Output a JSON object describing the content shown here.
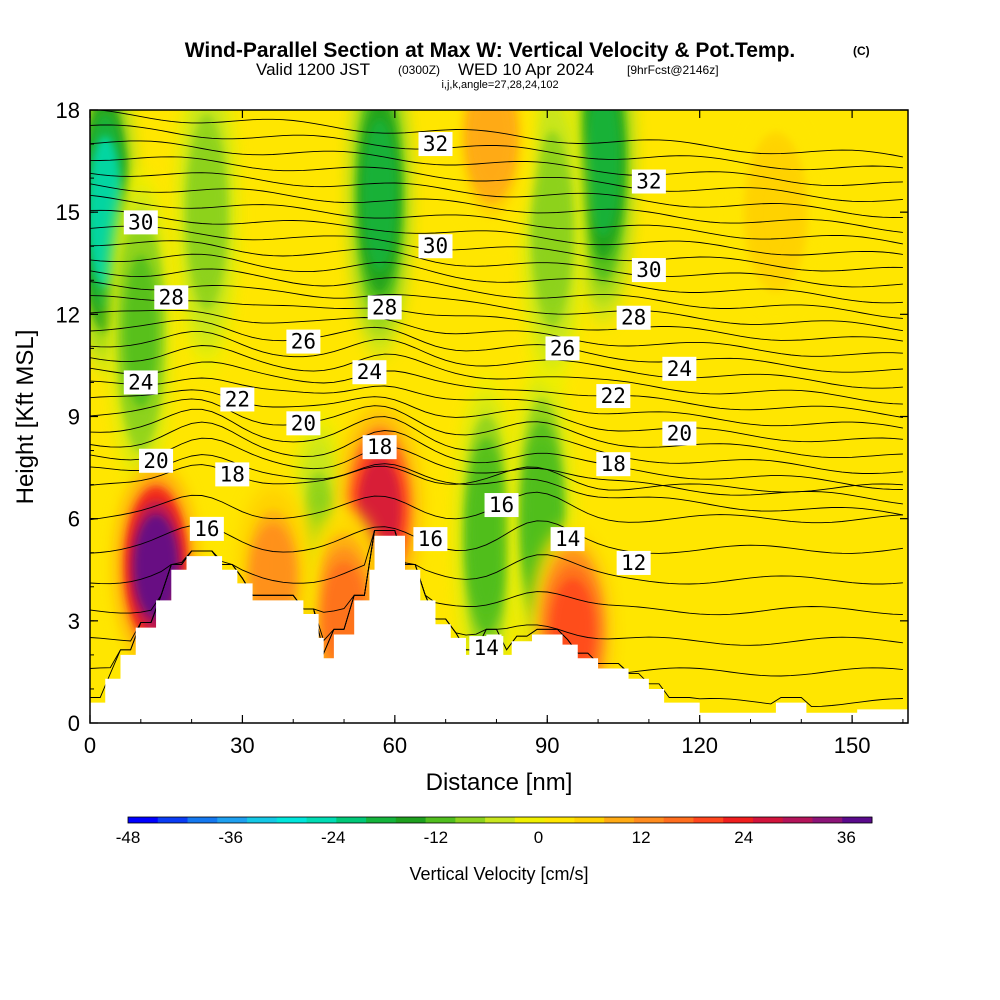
{
  "titles": {
    "main": "Wind-Parallel Section at Max W: Vertical Velocity & Pot.Temp.",
    "copyright": "(C)",
    "valid_prefix": "Valid 1200 JST",
    "valid_utc": "(0300Z)",
    "valid_date": "WED 10 Apr 2024",
    "forecast": "[9hrFcst@2146z]",
    "indices": "i,j,k,angle=27,28,24,102"
  },
  "colorbar": {
    "label": "Vertical Velocity [cm/s]",
    "tick_labels": [
      "-48",
      "-36",
      "-24",
      "-12",
      "0",
      "12",
      "24",
      "36"
    ],
    "tick_values": [
      -48,
      -36,
      -24,
      -12,
      0,
      12,
      24,
      36
    ],
    "min": -48,
    "max": 39,
    "colors": [
      "#0000ff",
      "#0a3cf5",
      "#1478f0",
      "#1ea0f0",
      "#14c8e6",
      "#00e6dc",
      "#00dcb4",
      "#00c878",
      "#14b43c",
      "#1ea01e",
      "#50be1e",
      "#8cd21e",
      "#c8e61e",
      "#f0f000",
      "#ffe600",
      "#ffd200",
      "#ffaa14",
      "#ff8c1e",
      "#ff6e1e",
      "#ff461e",
      "#f01e1e",
      "#d2143c",
      "#b4145a",
      "#8c1478",
      "#5a0a8c"
    ]
  },
  "chart_data": {
    "type": "heatmap",
    "title": "Wind-Parallel Section at Max W: Vertical Velocity & Pot.Temp.",
    "xlabel": "Distance [nm]",
    "ylabel": "Height [Kft MSL]",
    "xlim": [
      0,
      161
    ],
    "ylim": [
      0,
      18
    ],
    "x_ticks": [
      0,
      30,
      60,
      90,
      120,
      150
    ],
    "y_ticks": [
      0,
      3,
      6,
      9,
      12,
      15,
      18
    ],
    "fill_variable": "Vertical Velocity [cm/s]",
    "contour_variable": "Pot.Temp.",
    "terrain": [
      [
        0,
        0.6
      ],
      [
        3,
        0.6
      ],
      [
        3,
        1.3
      ],
      [
        6,
        1.3
      ],
      [
        6,
        2.0
      ],
      [
        9,
        2.0
      ],
      [
        9,
        2.8
      ],
      [
        13,
        2.8
      ],
      [
        13,
        3.6
      ],
      [
        16,
        3.6
      ],
      [
        16,
        4.5
      ],
      [
        19,
        4.5
      ],
      [
        19,
        4.9
      ],
      [
        26,
        4.9
      ],
      [
        26,
        4.5
      ],
      [
        29,
        4.5
      ],
      [
        29,
        4.1
      ],
      [
        32,
        4.1
      ],
      [
        32,
        3.6
      ],
      [
        39,
        3.6
      ],
      [
        39,
        3.6
      ],
      [
        42,
        3.6
      ],
      [
        42,
        3.2
      ],
      [
        45,
        3.2
      ],
      [
        45,
        2.5
      ],
      [
        46,
        2.5
      ],
      [
        46,
        1.9
      ],
      [
        48,
        1.9
      ],
      [
        48,
        2.6
      ],
      [
        52,
        2.6
      ],
      [
        52,
        3.6
      ],
      [
        55,
        3.6
      ],
      [
        55,
        4.5
      ],
      [
        56,
        4.5
      ],
      [
        56,
        5.5
      ],
      [
        62,
        5.5
      ],
      [
        62,
        4.5
      ],
      [
        65,
        4.5
      ],
      [
        65,
        3.6
      ],
      [
        68,
        3.6
      ],
      [
        68,
        2.9
      ],
      [
        71,
        2.9
      ],
      [
        71,
        2.5
      ],
      [
        74,
        2.5
      ],
      [
        74,
        2.0
      ],
      [
        78,
        2.0
      ],
      [
        78,
        2.6
      ],
      [
        81,
        2.6
      ],
      [
        81,
        2.0
      ],
      [
        83,
        2.0
      ],
      [
        83,
        2.4
      ],
      [
        87,
        2.4
      ],
      [
        87,
        2.6
      ],
      [
        93,
        2.6
      ],
      [
        93,
        2.3
      ],
      [
        96,
        2.3
      ],
      [
        96,
        1.9
      ],
      [
        100,
        1.9
      ],
      [
        100,
        1.6
      ],
      [
        106,
        1.6
      ],
      [
        106,
        1.3
      ],
      [
        110,
        1.3
      ],
      [
        110,
        1.0
      ],
      [
        113,
        1.0
      ],
      [
        113,
        0.6
      ],
      [
        120,
        0.6
      ],
      [
        120,
        0.3
      ],
      [
        135,
        0.3
      ],
      [
        135,
        0.6
      ],
      [
        141,
        0.6
      ],
      [
        141,
        0.3
      ],
      [
        151,
        0.3
      ],
      [
        151,
        0.4
      ],
      [
        161,
        0.4
      ]
    ],
    "isentrope_labels": [
      {
        "text": "32",
        "x": 68,
        "y": 17.0
      },
      {
        "text": "32",
        "x": 110,
        "y": 15.9
      },
      {
        "text": "30",
        "x": 10,
        "y": 14.7
      },
      {
        "text": "30",
        "x": 68,
        "y": 14.0
      },
      {
        "text": "30",
        "x": 110,
        "y": 13.3
      },
      {
        "text": "28",
        "x": 16,
        "y": 12.5
      },
      {
        "text": "28",
        "x": 58,
        "y": 12.2
      },
      {
        "text": "28",
        "x": 107,
        "y": 11.9
      },
      {
        "text": "26",
        "x": 42,
        "y": 11.2
      },
      {
        "text": "26",
        "x": 93,
        "y": 11.0
      },
      {
        "text": "24",
        "x": 10,
        "y": 10.0
      },
      {
        "text": "24",
        "x": 55,
        "y": 10.3
      },
      {
        "text": "24",
        "x": 116,
        "y": 10.4
      },
      {
        "text": "22",
        "x": 29,
        "y": 9.5
      },
      {
        "text": "22",
        "x": 103,
        "y": 9.6
      },
      {
        "text": "20",
        "x": 42,
        "y": 8.8
      },
      {
        "text": "20",
        "x": 13,
        "y": 7.7
      },
      {
        "text": "20",
        "x": 116,
        "y": 8.5
      },
      {
        "text": "18",
        "x": 28,
        "y": 7.3
      },
      {
        "text": "18",
        "x": 57,
        "y": 8.1
      },
      {
        "text": "18",
        "x": 103,
        "y": 7.6
      },
      {
        "text": "16",
        "x": 23,
        "y": 5.7
      },
      {
        "text": "16",
        "x": 81,
        "y": 6.4
      },
      {
        "text": "16",
        "x": 67,
        "y": 5.4
      },
      {
        "text": "14",
        "x": 94,
        "y": 5.4
      },
      {
        "text": "14",
        "x": 78,
        "y": 2.2
      },
      {
        "text": "12",
        "x": 107,
        "y": 4.7
      }
    ],
    "updraft_cores": [
      {
        "x": 13,
        "y": 4.6,
        "w": 36
      },
      {
        "x": 57,
        "y": 6.3,
        "w": 26
      },
      {
        "x": 95,
        "y": 2.7,
        "w": 20
      },
      {
        "x": 50,
        "y": 3.2,
        "w": 18
      },
      {
        "x": 36,
        "y": 4.3,
        "w": 12
      },
      {
        "x": 79,
        "y": 17.2,
        "w": 10
      },
      {
        "x": 135,
        "y": 15,
        "w": 7
      }
    ],
    "downdraft_cores": [
      {
        "x": 3,
        "y": 15,
        "w": -24
      },
      {
        "x": 57,
        "y": 15.5,
        "w": -20
      },
      {
        "x": 101,
        "y": 16.5,
        "w": -20
      },
      {
        "x": 78,
        "y": 5.5,
        "w": -13
      },
      {
        "x": 89,
        "y": 6.0,
        "w": -13
      },
      {
        "x": 23,
        "y": 15,
        "w": -8
      },
      {
        "x": 91,
        "y": 14.5,
        "w": -8
      },
      {
        "x": 10,
        "y": 11.5,
        "w": -12
      },
      {
        "x": 45,
        "y": 4.5,
        "w": -8
      }
    ]
  }
}
